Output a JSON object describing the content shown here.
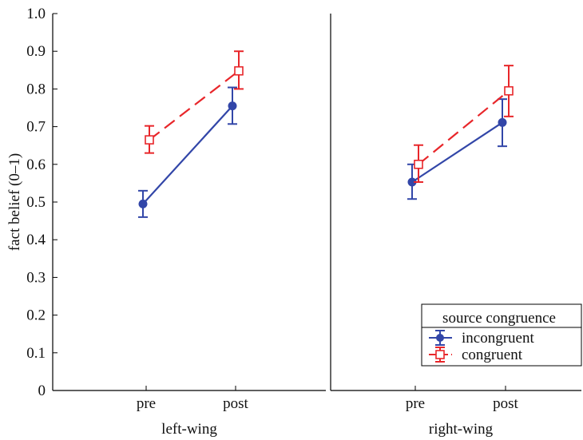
{
  "chart_data": {
    "type": "line",
    "ylabel": "fact belief (0–1)",
    "ylim": [
      0,
      1.0
    ],
    "yticks": [
      "0",
      "0.1",
      "0.2",
      "0.3",
      "0.4",
      "0.5",
      "0.6",
      "0.7",
      "0.8",
      "0.9",
      "1.0"
    ],
    "categories": [
      "pre",
      "post"
    ],
    "panels": [
      {
        "xlabel": "left-wing",
        "series": [
          {
            "name": "incongruent",
            "values": [
              0.495,
              0.755
            ],
            "lower": [
              0.46,
              0.707
            ],
            "upper": [
              0.53,
              0.804
            ]
          },
          {
            "name": "congruent",
            "values": [
              0.665,
              0.848
            ],
            "lower": [
              0.63,
              0.8
            ],
            "upper": [
              0.702,
              0.9
            ]
          }
        ]
      },
      {
        "xlabel": "right-wing",
        "series": [
          {
            "name": "incongruent",
            "values": [
              0.553,
              0.711
            ],
            "lower": [
              0.508,
              0.648
            ],
            "upper": [
              0.6,
              0.773
            ]
          },
          {
            "name": "congruent",
            "values": [
              0.6,
              0.795
            ],
            "lower": [
              0.553,
              0.727
            ],
            "upper": [
              0.651,
              0.862
            ]
          }
        ]
      }
    ],
    "legend": {
      "title": "source congruence",
      "placement": "bottom-right",
      "entries": [
        "incongruent",
        "congruent"
      ]
    },
    "colors": {
      "incongruent": "#3246a8",
      "congruent": "#e8262a"
    },
    "grid": false
  }
}
